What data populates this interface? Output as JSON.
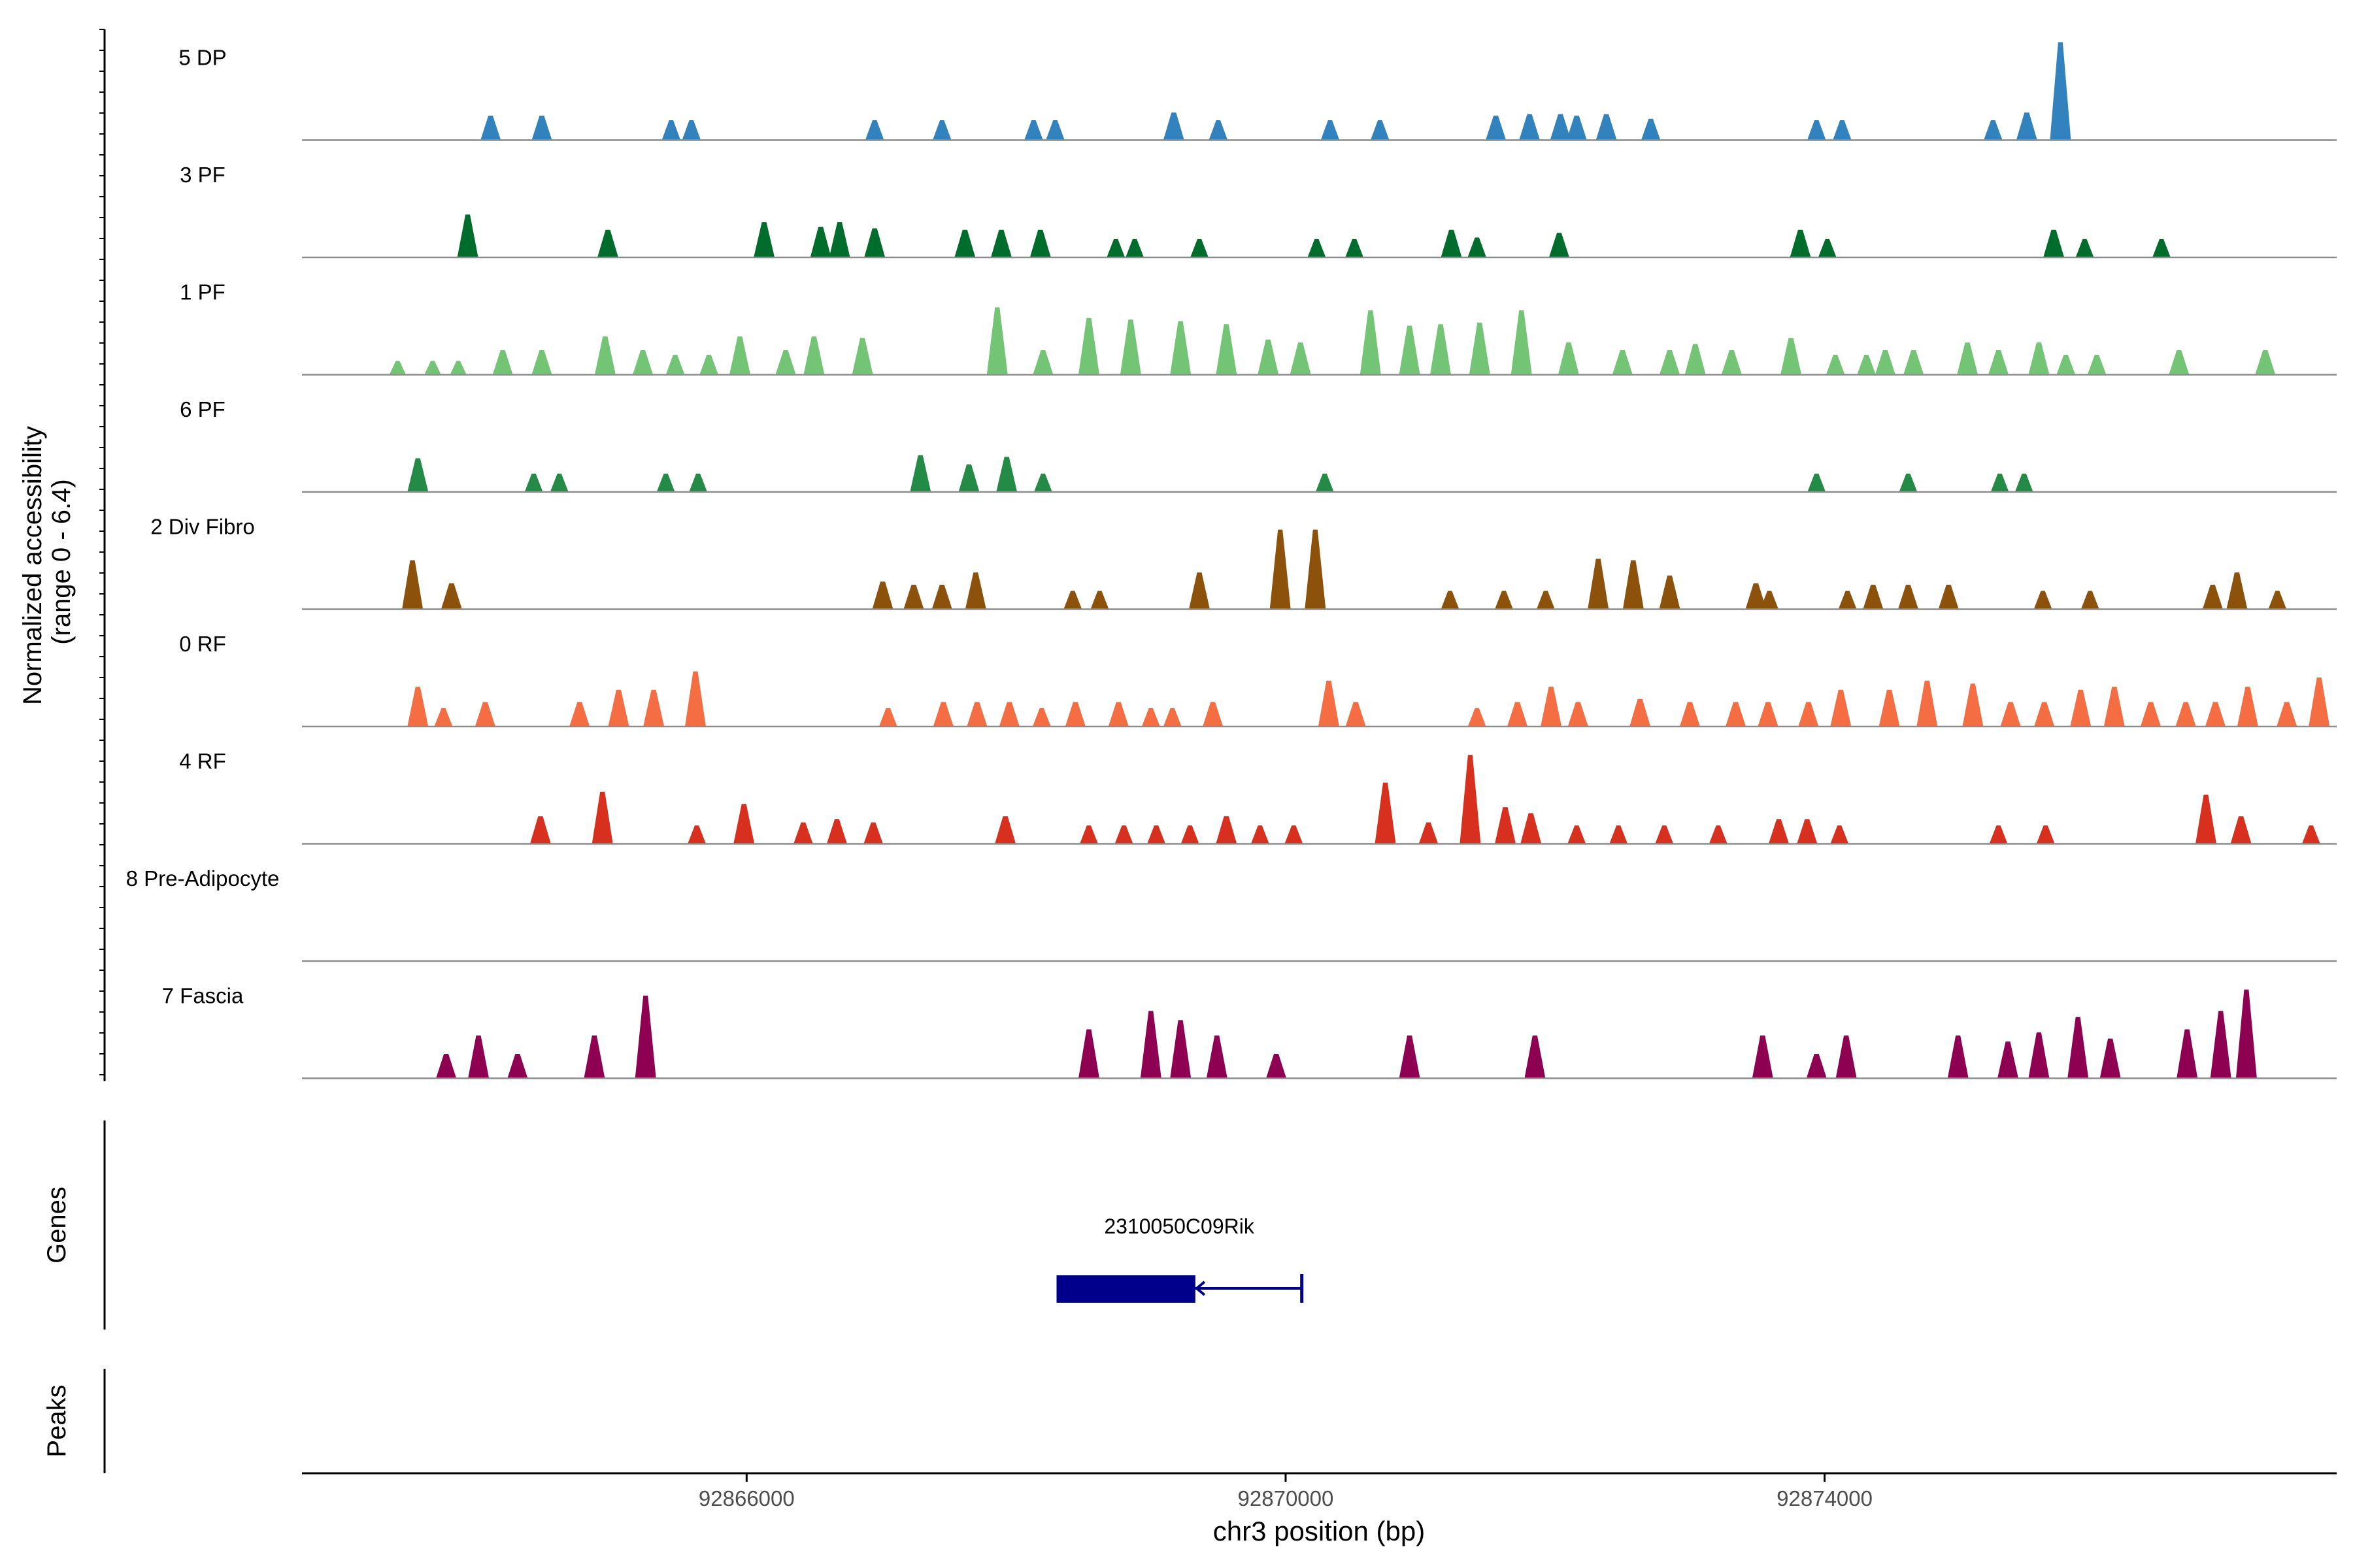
{
  "chart_data": {
    "type": "area",
    "ylabel_line1": "Normalized accessibility",
    "ylabel_line2": "(range 0 - 6.4)",
    "xlabel": "chr3 position (bp)",
    "xlim": [
      92862700,
      92877800
    ],
    "xticks": [
      {
        "value": 92866000,
        "label": "92866000"
      },
      {
        "value": 92870000,
        "label": "92870000"
      },
      {
        "value": 92874000,
        "label": "92874000"
      }
    ],
    "y_range": [
      0,
      6.4
    ],
    "series": [
      {
        "name": "5 DP",
        "color": "#3182BD",
        "peaks": [
          [
            92864100,
            1.6
          ],
          [
            92864480,
            1.6
          ],
          [
            92865440,
            1.3
          ],
          [
            92865590,
            1.3
          ],
          [
            92866950,
            1.3
          ],
          [
            92867450,
            1.3
          ],
          [
            92868130,
            1.3
          ],
          [
            92868290,
            1.3
          ],
          [
            92869170,
            1.8
          ],
          [
            92869500,
            1.3
          ],
          [
            92870330,
            1.3
          ],
          [
            92870700,
            1.3
          ],
          [
            92871560,
            1.6
          ],
          [
            92871810,
            1.7
          ],
          [
            92872040,
            1.7
          ],
          [
            92872160,
            1.6
          ],
          [
            92872380,
            1.7
          ],
          [
            92872710,
            1.4
          ],
          [
            92873940,
            1.3
          ],
          [
            92874130,
            1.3
          ],
          [
            92875250,
            1.3
          ],
          [
            92875500,
            1.8
          ],
          [
            92875750,
            6.4
          ]
        ]
      },
      {
        "name": "3 PF",
        "color": "#006D2C",
        "peaks": [
          [
            92863930,
            2.8
          ],
          [
            92864970,
            1.8
          ],
          [
            92866130,
            2.3
          ],
          [
            92866550,
            2.0
          ],
          [
            92866690,
            2.3
          ],
          [
            92866950,
            1.9
          ],
          [
            92867620,
            1.8
          ],
          [
            92867890,
            1.8
          ],
          [
            92868180,
            1.8
          ],
          [
            92868740,
            1.2
          ],
          [
            92868880,
            1.2
          ],
          [
            92869360,
            1.2
          ],
          [
            92870230,
            1.2
          ],
          [
            92870510,
            1.2
          ],
          [
            92871230,
            1.8
          ],
          [
            92871420,
            1.3
          ],
          [
            92872030,
            1.6
          ],
          [
            92873820,
            1.8
          ],
          [
            92874020,
            1.2
          ],
          [
            92875700,
            1.8
          ],
          [
            92875930,
            1.2
          ],
          [
            92876500,
            1.2
          ]
        ]
      },
      {
        "name": "1 PF",
        "color": "#74C476",
        "peaks": [
          [
            92863410,
            0.9
          ],
          [
            92863670,
            0.9
          ],
          [
            92863860,
            0.9
          ],
          [
            92864190,
            1.6
          ],
          [
            92864480,
            1.6
          ],
          [
            92864950,
            2.5
          ],
          [
            92865230,
            1.6
          ],
          [
            92865470,
            1.3
          ],
          [
            92865720,
            1.3
          ],
          [
            92865950,
            2.5
          ],
          [
            92866290,
            1.6
          ],
          [
            92866500,
            2.5
          ],
          [
            92866860,
            2.4
          ],
          [
            92867860,
            4.4
          ],
          [
            92868200,
            1.6
          ],
          [
            92868540,
            3.7
          ],
          [
            92868850,
            3.6
          ],
          [
            92869220,
            3.5
          ],
          [
            92869560,
            3.3
          ],
          [
            92869870,
            2.3
          ],
          [
            92870110,
            2.1
          ],
          [
            92870630,
            4.2
          ],
          [
            92870920,
            3.2
          ],
          [
            92871150,
            3.3
          ],
          [
            92871440,
            3.4
          ],
          [
            92871750,
            4.2
          ],
          [
            92872100,
            2.1
          ],
          [
            92872500,
            1.6
          ],
          [
            92872850,
            1.6
          ],
          [
            92873040,
            2.0
          ],
          [
            92873310,
            1.6
          ],
          [
            92873750,
            2.4
          ],
          [
            92874080,
            1.3
          ],
          [
            92874310,
            1.3
          ],
          [
            92874450,
            1.6
          ],
          [
            92874660,
            1.6
          ],
          [
            92875060,
            2.1
          ],
          [
            92875290,
            1.6
          ],
          [
            92875590,
            2.1
          ],
          [
            92875790,
            1.3
          ],
          [
            92876020,
            1.3
          ],
          [
            92876630,
            1.6
          ],
          [
            92877270,
            1.6
          ]
        ]
      },
      {
        "name": "6 PF",
        "color": "#238B45",
        "peaks": [
          [
            92863560,
            2.2
          ],
          [
            92864420,
            1.2
          ],
          [
            92864610,
            1.2
          ],
          [
            92865400,
            1.2
          ],
          [
            92865640,
            1.2
          ],
          [
            92867290,
            2.4
          ],
          [
            92867650,
            1.8
          ],
          [
            92867930,
            2.3
          ],
          [
            92868200,
            1.2
          ],
          [
            92870290,
            1.2
          ],
          [
            92873940,
            1.2
          ],
          [
            92874620,
            1.2
          ],
          [
            92875300,
            1.2
          ],
          [
            92875480,
            1.2
          ]
        ]
      },
      {
        "name": "2 Div Fibro",
        "color": "#8C510A",
        "peaks": [
          [
            92863520,
            3.2
          ],
          [
            92863810,
            1.7
          ],
          [
            92867010,
            1.8
          ],
          [
            92867240,
            1.6
          ],
          [
            92867450,
            1.6
          ],
          [
            92867700,
            2.4
          ],
          [
            92868420,
            1.2
          ],
          [
            92868620,
            1.2
          ],
          [
            92869360,
            2.4
          ],
          [
            92869960,
            5.2
          ],
          [
            92870220,
            5.2
          ],
          [
            92871220,
            1.2
          ],
          [
            92871620,
            1.2
          ],
          [
            92871930,
            1.2
          ],
          [
            92872320,
            3.3
          ],
          [
            92872580,
            3.2
          ],
          [
            92872850,
            2.2
          ],
          [
            92873490,
            1.7
          ],
          [
            92873590,
            1.2
          ],
          [
            92874170,
            1.2
          ],
          [
            92874360,
            1.6
          ],
          [
            92874620,
            1.6
          ],
          [
            92874920,
            1.6
          ],
          [
            92875620,
            1.2
          ],
          [
            92875970,
            1.2
          ],
          [
            92876880,
            1.6
          ],
          [
            92877060,
            2.4
          ],
          [
            92877360,
            1.2
          ]
        ]
      },
      {
        "name": "0 RF",
        "color": "#F46D43",
        "peaks": [
          [
            92863560,
            2.6
          ],
          [
            92863750,
            1.2
          ],
          [
            92864060,
            1.6
          ],
          [
            92864760,
            1.6
          ],
          [
            92865050,
            2.4
          ],
          [
            92865310,
            2.4
          ],
          [
            92865620,
            3.6
          ],
          [
            92867050,
            1.2
          ],
          [
            92867460,
            1.6
          ],
          [
            92867710,
            1.6
          ],
          [
            92867950,
            1.6
          ],
          [
            92868190,
            1.2
          ],
          [
            92868440,
            1.6
          ],
          [
            92868760,
            1.6
          ],
          [
            92869000,
            1.2
          ],
          [
            92869160,
            1.2
          ],
          [
            92869460,
            1.6
          ],
          [
            92870320,
            3.0
          ],
          [
            92870520,
            1.6
          ],
          [
            92871420,
            1.2
          ],
          [
            92871720,
            1.6
          ],
          [
            92871970,
            2.6
          ],
          [
            92872170,
            1.6
          ],
          [
            92872630,
            1.8
          ],
          [
            92873000,
            1.6
          ],
          [
            92873340,
            1.6
          ],
          [
            92873580,
            1.6
          ],
          [
            92873880,
            1.6
          ],
          [
            92874120,
            2.4
          ],
          [
            92874480,
            2.4
          ],
          [
            92874760,
            3.0
          ],
          [
            92875100,
            2.8
          ],
          [
            92875380,
            1.6
          ],
          [
            92875630,
            1.6
          ],
          [
            92875900,
            2.4
          ],
          [
            92876150,
            2.6
          ],
          [
            92876420,
            1.6
          ],
          [
            92876680,
            1.6
          ],
          [
            92876900,
            1.6
          ],
          [
            92877140,
            2.6
          ],
          [
            92877430,
            1.6
          ],
          [
            92877670,
            3.2
          ]
        ]
      },
      {
        "name": "4 RF",
        "color": "#D7301F",
        "peaks": [
          [
            92864470,
            1.8
          ],
          [
            92864930,
            3.4
          ],
          [
            92865630,
            1.2
          ],
          [
            92865980,
            2.6
          ],
          [
            92866420,
            1.4
          ],
          [
            92866670,
            1.6
          ],
          [
            92866940,
            1.4
          ],
          [
            92867920,
            1.8
          ],
          [
            92868540,
            1.2
          ],
          [
            92868800,
            1.2
          ],
          [
            92869040,
            1.2
          ],
          [
            92869290,
            1.2
          ],
          [
            92869560,
            1.8
          ],
          [
            92869810,
            1.2
          ],
          [
            92870060,
            1.2
          ],
          [
            92870740,
            4.0
          ],
          [
            92871060,
            1.4
          ],
          [
            92871370,
            5.8
          ],
          [
            92871630,
            2.4
          ],
          [
            92871820,
            2.0
          ],
          [
            92872160,
            1.2
          ],
          [
            92872470,
            1.2
          ],
          [
            92872810,
            1.2
          ],
          [
            92873210,
            1.2
          ],
          [
            92873660,
            1.6
          ],
          [
            92873870,
            1.6
          ],
          [
            92874110,
            1.2
          ],
          [
            92875290,
            1.2
          ],
          [
            92875640,
            1.2
          ],
          [
            92876830,
            3.2
          ],
          [
            92877090,
            1.8
          ],
          [
            92877610,
            1.2
          ]
        ]
      },
      {
        "name": "8 Pre-Adipocyte",
        "color": "#6A51A3",
        "peaks": []
      },
      {
        "name": "7 Fascia",
        "color": "#8E0152",
        "peaks": [
          [
            92863770,
            1.6
          ],
          [
            92864010,
            2.8
          ],
          [
            92864300,
            1.6
          ],
          [
            92864870,
            2.8
          ],
          [
            92865250,
            5.4
          ],
          [
            92868540,
            3.2
          ],
          [
            92869000,
            4.4
          ],
          [
            92869220,
            3.8
          ],
          [
            92869490,
            2.8
          ],
          [
            92869930,
            1.6
          ],
          [
            92870920,
            2.8
          ],
          [
            92871850,
            2.8
          ],
          [
            92873540,
            2.8
          ],
          [
            92873940,
            1.6
          ],
          [
            92874160,
            2.8
          ],
          [
            92874990,
            2.8
          ],
          [
            92875360,
            2.4
          ],
          [
            92875590,
            3.0
          ],
          [
            92875880,
            4.0
          ],
          [
            92876120,
            2.6
          ],
          [
            92876690,
            3.2
          ],
          [
            92876940,
            4.4
          ],
          [
            92877130,
            5.8
          ]
        ]
      }
    ],
    "genes_panel": {
      "label": "Genes",
      "gene_name": "2310050C09Rik",
      "gene_start": 92868300,
      "thick_end": 92869330,
      "gene_end": 92870120,
      "color": "#00008B"
    },
    "peaks_panel": {
      "label": "Peaks"
    }
  }
}
